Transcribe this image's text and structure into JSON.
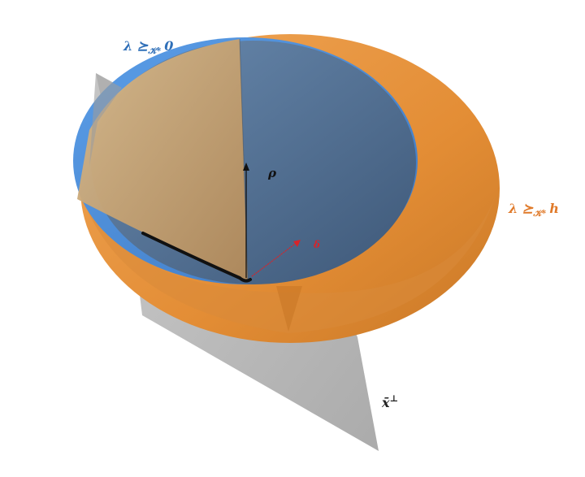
{
  "labels": {
    "blue_cone": "λ ⪰",
    "blue_cone_sub": "𝒦*",
    "blue_cone_rhs": "0",
    "orange_cone": "λ ⪰",
    "orange_cone_sub": "𝒦*",
    "orange_cone_rhs": "h",
    "rho": "ρ",
    "delta": "δ",
    "plane": "x̄",
    "plane_sup": "⊥"
  },
  "colors": {
    "blue_cone": "#4a8ad6",
    "blue_cone_inner": "#4d6b8f",
    "orange_cone": "#e79844",
    "tan_face": "#c9a878",
    "plane": "#9a9a9a",
    "orange_label": "#e07a2a",
    "blue_label": "#2f6fb8",
    "delta": "#d8242a"
  }
}
